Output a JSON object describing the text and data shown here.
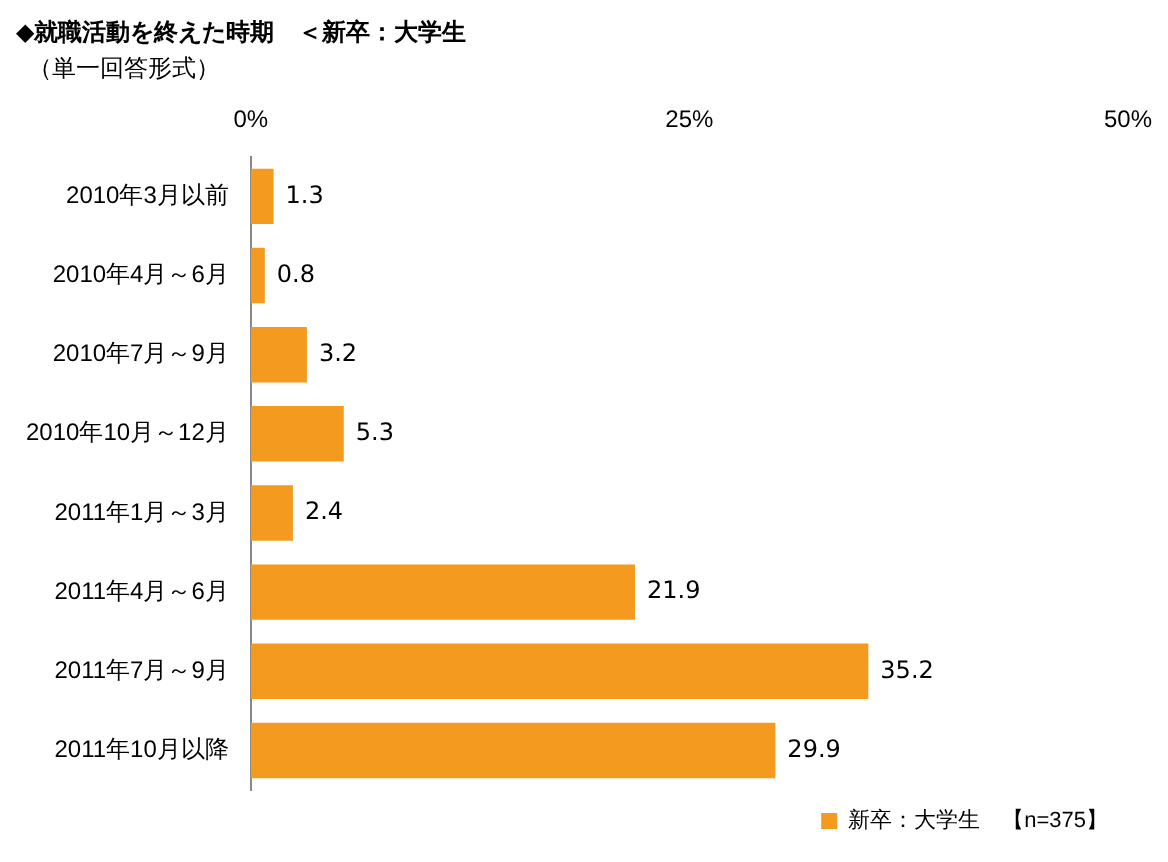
{
  "chart_data": {
    "type": "bar",
    "orientation": "horizontal",
    "title": "◆就職活動を終えた時期　＜新卒：大学生",
    "subtitle": "（単一回答形式）",
    "categories": [
      "2010年3月以前",
      "2010年4月～6月",
      "2010年7月～9月",
      "2010年10月～12月",
      "2011年1月～3月",
      "2011年4月～6月",
      "2011年7月～9月",
      "2011年10月以降"
    ],
    "series": [
      {
        "name": "新卒：大学生　【n=375】",
        "color": "#f39a1f",
        "values": [
          1.3,
          0.8,
          3.2,
          5.3,
          2.4,
          21.9,
          35.2,
          29.9
        ]
      }
    ],
    "xlim": [
      0,
      50
    ],
    "xticks": [
      {
        "value": 0,
        "label": "0%"
      },
      {
        "value": 25,
        "label": "25%"
      },
      {
        "value": 50,
        "label": "50%"
      }
    ],
    "data_labels": true,
    "grid": false,
    "legend": "bottom right"
  }
}
